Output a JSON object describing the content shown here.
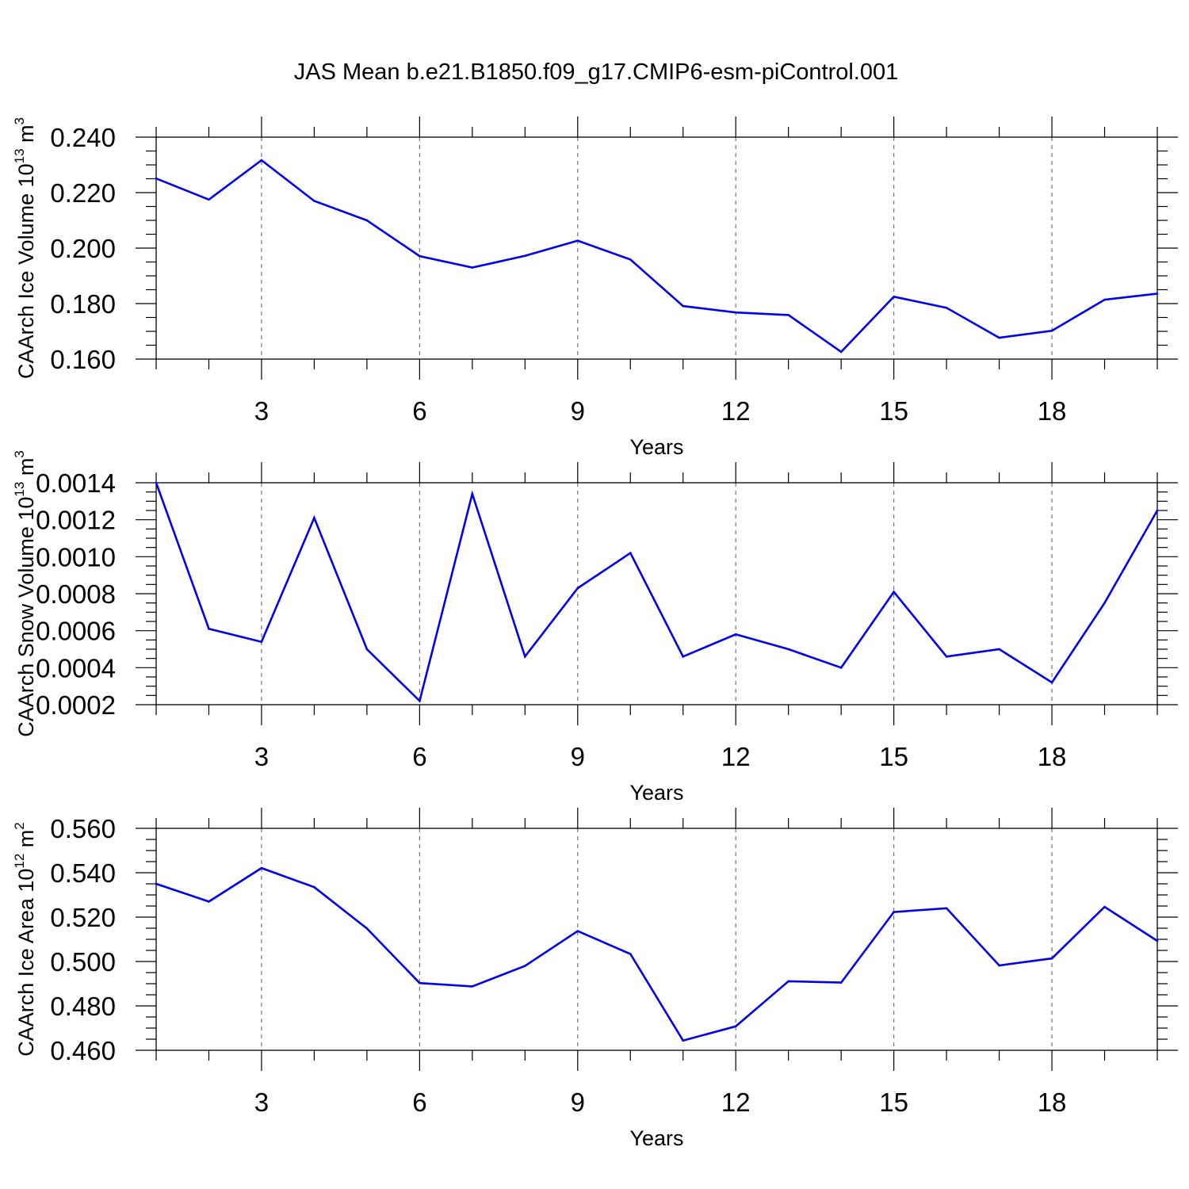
{
  "title": "JAS Mean b.e21.B1850.f09_g17.CMIP6-esm-piControl.001",
  "colors": {
    "line": "#0000ee"
  },
  "chart_data": [
    {
      "type": "line",
      "xlabel": "Years",
      "ylabel": {
        "text": "CAArch Ice Volume 10",
        "exponent": "13",
        "unit_text": " m",
        "unit_exponent": "3"
      },
      "xlim": [
        1,
        20
      ],
      "ylim": [
        0.16,
        0.24
      ],
      "grid": "vertical dashed lines at labeled years",
      "x_ticks": [
        3,
        6,
        9,
        12,
        15,
        18
      ],
      "x_tick_labels": [
        "3",
        "6",
        "9",
        "12",
        "15",
        "18"
      ],
      "y_ticks": [
        0.16,
        0.18,
        0.2,
        0.22,
        0.24
      ],
      "y_tick_labels": [
        "0.160",
        "0.180",
        "0.200",
        "0.220",
        "0.240"
      ],
      "y_minor_step": 0.005,
      "x": [
        1,
        2,
        3,
        4,
        5,
        6,
        7,
        8,
        9,
        10,
        11,
        12,
        13,
        14,
        15,
        16,
        17,
        18,
        19,
        20
      ],
      "values": [
        0.2251,
        0.2175,
        0.2317,
        0.217,
        0.21,
        0.1971,
        0.193,
        0.1972,
        0.2027,
        0.1959,
        0.1791,
        0.1768,
        0.1759,
        0.1626,
        0.1825,
        0.1785,
        0.1677,
        0.1702,
        0.1814,
        0.1836
      ]
    },
    {
      "type": "line",
      "xlabel": "Years",
      "ylabel": {
        "text": "CAArch Snow Volume 10",
        "exponent": "13",
        "unit_text": " m",
        "unit_exponent": "3"
      },
      "xlim": [
        1,
        20
      ],
      "ylim": [
        0.0002,
        0.0014
      ],
      "grid": "vertical dashed lines at labeled years",
      "x_ticks": [
        3,
        6,
        9,
        12,
        15,
        18
      ],
      "x_tick_labels": [
        "3",
        "6",
        "9",
        "12",
        "15",
        "18"
      ],
      "y_ticks": [
        0.0002,
        0.0004,
        0.0006,
        0.0008,
        0.001,
        0.0012,
        0.0014
      ],
      "y_tick_labels": [
        "0.0002",
        "0.0004",
        "0.0006",
        "0.0008",
        "0.0010",
        "0.0012",
        "0.0014"
      ],
      "y_minor_step": 5e-05,
      "x": [
        1,
        2,
        3,
        4,
        5,
        6,
        7,
        8,
        9,
        10,
        11,
        12,
        13,
        14,
        15,
        16,
        17,
        18,
        19,
        20
      ],
      "values": [
        0.0014,
        0.00061,
        0.00054,
        0.00121,
        0.0005,
        0.00022,
        0.00134,
        0.00046,
        0.00083,
        0.00102,
        0.00046,
        0.00058,
        0.0005,
        0.0004,
        0.00081,
        0.00046,
        0.0005,
        0.00032,
        0.00075,
        0.00125
      ]
    },
    {
      "type": "line",
      "xlabel": "Years",
      "ylabel": {
        "text": "CAArch Ice Area 10",
        "exponent": "12",
        "unit_text": " m",
        "unit_exponent": "2"
      },
      "xlim": [
        1,
        20
      ],
      "ylim": [
        0.46,
        0.56
      ],
      "grid": "vertical dashed lines at labeled years",
      "x_ticks": [
        3,
        6,
        9,
        12,
        15,
        18
      ],
      "x_tick_labels": [
        "3",
        "6",
        "9",
        "12",
        "15",
        "18"
      ],
      "y_ticks": [
        0.46,
        0.48,
        0.5,
        0.52,
        0.54,
        0.56
      ],
      "y_tick_labels": [
        "0.460",
        "0.480",
        "0.500",
        "0.520",
        "0.540",
        "0.560"
      ],
      "y_minor_step": 0.005,
      "x": [
        1,
        2,
        3,
        4,
        5,
        6,
        7,
        8,
        9,
        10,
        11,
        12,
        13,
        14,
        15,
        16,
        17,
        18,
        19,
        20
      ],
      "values": [
        0.535,
        0.527,
        0.5421,
        0.5335,
        0.5149,
        0.4903,
        0.4888,
        0.498,
        0.5137,
        0.5034,
        0.4644,
        0.4708,
        0.4911,
        0.4905,
        0.5223,
        0.524,
        0.4982,
        0.5014,
        0.5246,
        0.5093
      ]
    }
  ]
}
